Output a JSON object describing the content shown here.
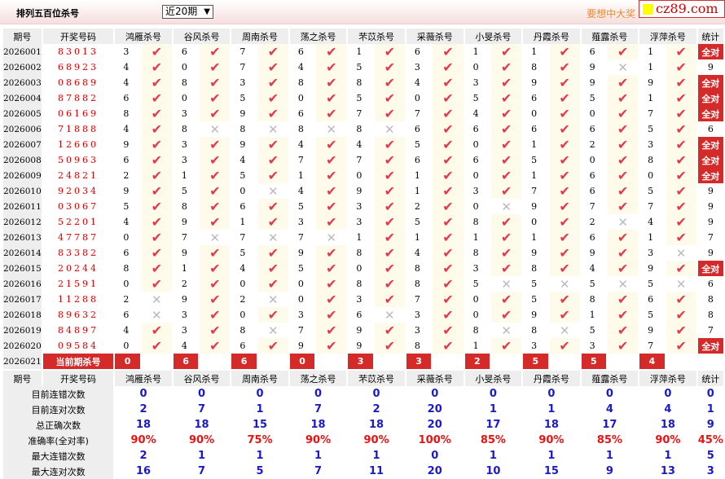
{
  "header": {
    "title": "排列五百位杀号",
    "range_select": "近20期",
    "slogan": "要想中大奖",
    "logo": "cz89.com"
  },
  "columns": {
    "period": "期号",
    "code": "开奖号码",
    "predictors": [
      "鸿雁杀号",
      "谷风杀号",
      "周南杀号",
      "荡之杀号",
      "芣苡杀号",
      "采薇杀号",
      "小旻杀号",
      "丹霞杀号",
      "薤露杀号",
      "浮萍杀号"
    ],
    "stat": "统计"
  },
  "rows": [
    {
      "period": "2026001",
      "code": "83013",
      "values": [
        "3",
        "6",
        "7",
        "6",
        "1",
        "6",
        "1",
        "1",
        "6",
        "1"
      ],
      "hits": [
        1,
        1,
        1,
        1,
        1,
        1,
        1,
        1,
        1,
        1
      ],
      "stat": "全对"
    },
    {
      "period": "2026002",
      "code": "68923",
      "values": [
        "4",
        "0",
        "7",
        "4",
        "5",
        "3",
        "0",
        "8",
        "9",
        "1"
      ],
      "hits": [
        1,
        1,
        1,
        1,
        1,
        1,
        1,
        1,
        0,
        1
      ],
      "stat": "9"
    },
    {
      "period": "2026003",
      "code": "08689",
      "values": [
        "4",
        "8",
        "3",
        "8",
        "8",
        "4",
        "3",
        "9",
        "9",
        "9"
      ],
      "hits": [
        1,
        1,
        1,
        1,
        1,
        1,
        1,
        1,
        1,
        1
      ],
      "stat": "全对"
    },
    {
      "period": "2026004",
      "code": "87882",
      "values": [
        "6",
        "0",
        "5",
        "0",
        "5",
        "0",
        "5",
        "6",
        "5",
        "1"
      ],
      "hits": [
        1,
        1,
        1,
        1,
        1,
        1,
        1,
        1,
        1,
        1
      ],
      "stat": "全对"
    },
    {
      "period": "2026005",
      "code": "06169",
      "values": [
        "8",
        "3",
        "9",
        "6",
        "7",
        "7",
        "4",
        "0",
        "0",
        "7"
      ],
      "hits": [
        1,
        1,
        1,
        1,
        1,
        1,
        1,
        1,
        1,
        1
      ],
      "stat": "全对"
    },
    {
      "period": "2026006",
      "code": "71888",
      "values": [
        "4",
        "8",
        "8",
        "8",
        "8",
        "6",
        "6",
        "6",
        "6",
        "5"
      ],
      "hits": [
        1,
        0,
        0,
        0,
        0,
        1,
        1,
        1,
        1,
        1
      ],
      "stat": "6"
    },
    {
      "period": "2026007",
      "code": "12660",
      "values": [
        "9",
        "3",
        "9",
        "4",
        "4",
        "5",
        "0",
        "1",
        "2",
        "3"
      ],
      "hits": [
        1,
        1,
        1,
        1,
        1,
        1,
        1,
        1,
        1,
        1
      ],
      "stat": "全对"
    },
    {
      "period": "2026008",
      "code": "50963",
      "values": [
        "6",
        "3",
        "4",
        "7",
        "7",
        "6",
        "6",
        "5",
        "0",
        "8"
      ],
      "hits": [
        1,
        1,
        1,
        1,
        1,
        1,
        1,
        1,
        1,
        1
      ],
      "stat": "全对"
    },
    {
      "period": "2026009",
      "code": "24821",
      "values": [
        "2",
        "1",
        "5",
        "1",
        "0",
        "1",
        "0",
        "1",
        "6",
        "0"
      ],
      "hits": [
        1,
        1,
        1,
        1,
        1,
        1,
        1,
        1,
        1,
        1
      ],
      "stat": "全对"
    },
    {
      "period": "2026010",
      "code": "92034",
      "values": [
        "9",
        "5",
        "0",
        "4",
        "9",
        "1",
        "3",
        "7",
        "6",
        "5"
      ],
      "hits": [
        1,
        1,
        0,
        1,
        1,
        1,
        1,
        1,
        1,
        1
      ],
      "stat": "9"
    },
    {
      "period": "2026011",
      "code": "03067",
      "values": [
        "5",
        "8",
        "6",
        "5",
        "3",
        "2",
        "0",
        "9",
        "7",
        "7"
      ],
      "hits": [
        1,
        1,
        1,
        1,
        1,
        1,
        0,
        1,
        1,
        1
      ],
      "stat": "9"
    },
    {
      "period": "2026012",
      "code": "52201",
      "values": [
        "4",
        "9",
        "1",
        "3",
        "3",
        "5",
        "8",
        "0",
        "2",
        "4"
      ],
      "hits": [
        1,
        1,
        1,
        1,
        1,
        1,
        1,
        1,
        0,
        1
      ],
      "stat": "9"
    },
    {
      "period": "2026013",
      "code": "47787",
      "values": [
        "0",
        "7",
        "7",
        "7",
        "1",
        "1",
        "1",
        "1",
        "6",
        "1"
      ],
      "hits": [
        1,
        0,
        0,
        0,
        1,
        1,
        1,
        1,
        1,
        1
      ],
      "stat": "7"
    },
    {
      "period": "2026014",
      "code": "83382",
      "values": [
        "6",
        "9",
        "5",
        "9",
        "8",
        "4",
        "8",
        "9",
        "9",
        "3"
      ],
      "hits": [
        1,
        1,
        1,
        1,
        1,
        1,
        1,
        1,
        1,
        0
      ],
      "stat": "9"
    },
    {
      "period": "2026015",
      "code": "20244",
      "values": [
        "8",
        "1",
        "4",
        "5",
        "0",
        "8",
        "3",
        "8",
        "4",
        "9"
      ],
      "hits": [
        1,
        1,
        1,
        1,
        1,
        1,
        1,
        1,
        1,
        1
      ],
      "stat": "全对"
    },
    {
      "period": "2026016",
      "code": "21591",
      "values": [
        "0",
        "2",
        "0",
        "0",
        "8",
        "8",
        "5",
        "5",
        "5",
        "5"
      ],
      "hits": [
        1,
        1,
        1,
        1,
        1,
        1,
        0,
        0,
        0,
        0
      ],
      "stat": "6"
    },
    {
      "period": "2026017",
      "code": "11288",
      "values": [
        "2",
        "9",
        "2",
        "0",
        "3",
        "7",
        "0",
        "5",
        "8",
        "6"
      ],
      "hits": [
        0,
        1,
        0,
        1,
        1,
        1,
        1,
        1,
        1,
        1
      ],
      "stat": "8"
    },
    {
      "period": "2026018",
      "code": "89632",
      "values": [
        "6",
        "3",
        "0",
        "3",
        "6",
        "3",
        "0",
        "9",
        "1",
        "5"
      ],
      "hits": [
        0,
        1,
        1,
        1,
        0,
        1,
        1,
        1,
        1,
        1
      ],
      "stat": "8"
    },
    {
      "period": "2026019",
      "code": "84897",
      "values": [
        "4",
        "3",
        "8",
        "7",
        "9",
        "3",
        "8",
        "8",
        "5",
        "9"
      ],
      "hits": [
        1,
        1,
        0,
        1,
        1,
        1,
        0,
        0,
        1,
        1
      ],
      "stat": "7"
    },
    {
      "period": "2026020",
      "code": "09584",
      "values": [
        "0",
        "4",
        "6",
        "9",
        "9",
        "8",
        "1",
        "3",
        "3",
        "7"
      ],
      "hits": [
        1,
        1,
        1,
        1,
        1,
        1,
        1,
        1,
        1,
        1
      ],
      "stat": "全对"
    }
  ],
  "current": {
    "period": "2026021",
    "label": "当前期杀号",
    "values": [
      "0",
      "6",
      "6",
      "0",
      "3",
      "3",
      "2",
      "5",
      "5",
      "4"
    ]
  },
  "stats": [
    {
      "label": "目前连错次数",
      "values": [
        "0",
        "0",
        "0",
        "0",
        "0",
        "0",
        "0",
        "0",
        "0",
        "0"
      ],
      "stat": "0"
    },
    {
      "label": "目前连对次数",
      "values": [
        "2",
        "7",
        "1",
        "7",
        "2",
        "20",
        "1",
        "1",
        "4",
        "4"
      ],
      "stat": "1"
    },
    {
      "label": "总正确次数",
      "values": [
        "18",
        "18",
        "15",
        "18",
        "18",
        "20",
        "17",
        "18",
        "17",
        "18"
      ],
      "stat": "9"
    },
    {
      "label": "准确率(全对率)",
      "values": [
        "90%",
        "90%",
        "75%",
        "90%",
        "90%",
        "100%",
        "85%",
        "90%",
        "85%",
        "90%"
      ],
      "stat": "45%",
      "color": "red"
    },
    {
      "label": "最大连错次数",
      "values": [
        "2",
        "1",
        "1",
        "1",
        "1",
        "0",
        "1",
        "1",
        "1",
        "1"
      ],
      "stat": "5"
    },
    {
      "label": "最大连对次数",
      "values": [
        "16",
        "7",
        "5",
        "7",
        "11",
        "20",
        "10",
        "15",
        "9",
        "13"
      ],
      "stat": "3"
    }
  ],
  "icons": {
    "hit": "check-icon",
    "miss": "cross-icon"
  },
  "colors": {
    "hit": "#e5394b",
    "badge": "#d42a2a",
    "stat_value": "#1a1ac8",
    "rate": "#ee1111"
  }
}
